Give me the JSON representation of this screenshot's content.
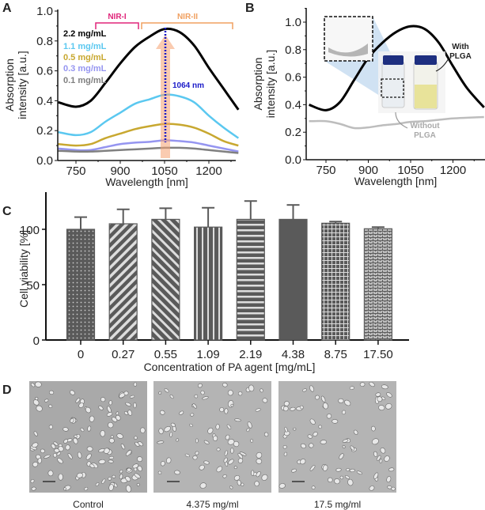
{
  "panels": {
    "a": "A",
    "b": "B",
    "c": "C",
    "d": "D"
  },
  "chart_data": [
    {
      "type": "line",
      "panel": "A",
      "xlabel": "Wavelength [nm]",
      "ylabel": [
        "Absorption",
        "intensity [a.u.]"
      ],
      "xticks": [
        750,
        900,
        1050,
        1200
      ],
      "yticks": [
        "0.0",
        "0.2",
        "0.4",
        "0.6",
        "0.8",
        "1.0"
      ],
      "xlim": [
        690,
        1300
      ],
      "ylim": [
        0,
        1.0
      ],
      "x": [
        690,
        750,
        800,
        850,
        900,
        950,
        1000,
        1050,
        1100,
        1150,
        1200,
        1250,
        1300
      ],
      "series": [
        {
          "name": "2.2 mg/mL",
          "color": "#000000",
          "values": [
            0.39,
            0.36,
            0.4,
            0.52,
            0.65,
            0.76,
            0.83,
            0.88,
            0.86,
            0.77,
            0.62,
            0.48,
            0.34
          ]
        },
        {
          "name": "1.1 mg/mL",
          "color": "#5bc8f0",
          "values": [
            0.19,
            0.17,
            0.19,
            0.26,
            0.32,
            0.38,
            0.41,
            0.44,
            0.43,
            0.39,
            0.3,
            0.22,
            0.15
          ]
        },
        {
          "name": "0.5 mg/mL",
          "color": "#c8a830",
          "values": [
            0.11,
            0.1,
            0.11,
            0.15,
            0.18,
            0.21,
            0.23,
            0.245,
            0.24,
            0.22,
            0.18,
            0.13,
            0.1
          ]
        },
        {
          "name": "0.3 mg/mL",
          "color": "#9595f0",
          "values": [
            0.08,
            0.07,
            0.07,
            0.09,
            0.11,
            0.12,
            0.125,
            0.135,
            0.13,
            0.12,
            0.1,
            0.08,
            0.06
          ]
        },
        {
          "name": "0.1 mg/mL",
          "color": "#808080",
          "values": [
            0.065,
            0.06,
            0.06,
            0.065,
            0.07,
            0.075,
            0.08,
            0.085,
            0.085,
            0.08,
            0.07,
            0.06,
            0.05
          ]
        }
      ],
      "annotations": {
        "nir1": {
          "label": "NIR-I",
          "color": "#e0257a"
        },
        "nir2": {
          "label": "NIR-II",
          "color": "#f0a060"
        },
        "marker": {
          "label": "1064 nm",
          "wavelength": 1064,
          "color": "#1a1ac8"
        }
      }
    },
    {
      "type": "line",
      "panel": "B",
      "xlabel": "Wavelength [nm]",
      "ylabel": [
        "Absorption",
        "intensity [a.u.]"
      ],
      "xticks": [
        750,
        900,
        1050,
        1200
      ],
      "yticks": [
        "0.0",
        "0.2",
        "0.4",
        "0.6",
        "0.8",
        "1.0"
      ],
      "xlim": [
        680,
        1310
      ],
      "ylim": [
        0,
        1.1
      ],
      "x": [
        690,
        750,
        800,
        850,
        900,
        950,
        1000,
        1050,
        1100,
        1150,
        1200,
        1250,
        1310
      ],
      "series": [
        {
          "name": "With PLGA",
          "label": [
            "With",
            "PLGA"
          ],
          "color": "#000000",
          "values": [
            0.4,
            0.36,
            0.42,
            0.58,
            0.74,
            0.85,
            0.93,
            0.97,
            0.95,
            0.85,
            0.68,
            0.52,
            0.38
          ]
        },
        {
          "name": "Without PLGA",
          "label": [
            "Without",
            "PLGA"
          ],
          "color": "#bdbdbd",
          "values": [
            0.28,
            0.28,
            0.26,
            0.23,
            0.235,
            0.25,
            0.26,
            0.275,
            0.28,
            0.29,
            0.3,
            0.305,
            0.31
          ]
        }
      ]
    },
    {
      "type": "bar",
      "panel": "C",
      "xlabel": "Concentration of PA agent [mg/mL]",
      "ylabel": "Cell viability [%]",
      "yticks": [
        "0",
        "50",
        "100"
      ],
      "ylim": [
        0,
        130
      ],
      "categories": [
        "0",
        "0.27",
        "0.55",
        "1.09",
        "2.19",
        "4.38",
        "8.75",
        "17.50"
      ],
      "values": [
        100,
        105,
        109,
        102,
        109,
        109,
        105.5,
        100.5
      ],
      "errors": [
        11,
        13,
        10,
        17.5,
        16.5,
        13,
        1.5,
        1.5
      ],
      "patterns": [
        "dots",
        "diag-right",
        "diag-left",
        "vertical",
        "horizontal",
        "solid",
        "grid",
        "brick"
      ],
      "color": "#5a5a5a"
    }
  ],
  "micrographs": [
    {
      "caption": "Control"
    },
    {
      "caption": "4.375 mg/ml"
    },
    {
      "caption": "17.5 mg/ml"
    }
  ]
}
